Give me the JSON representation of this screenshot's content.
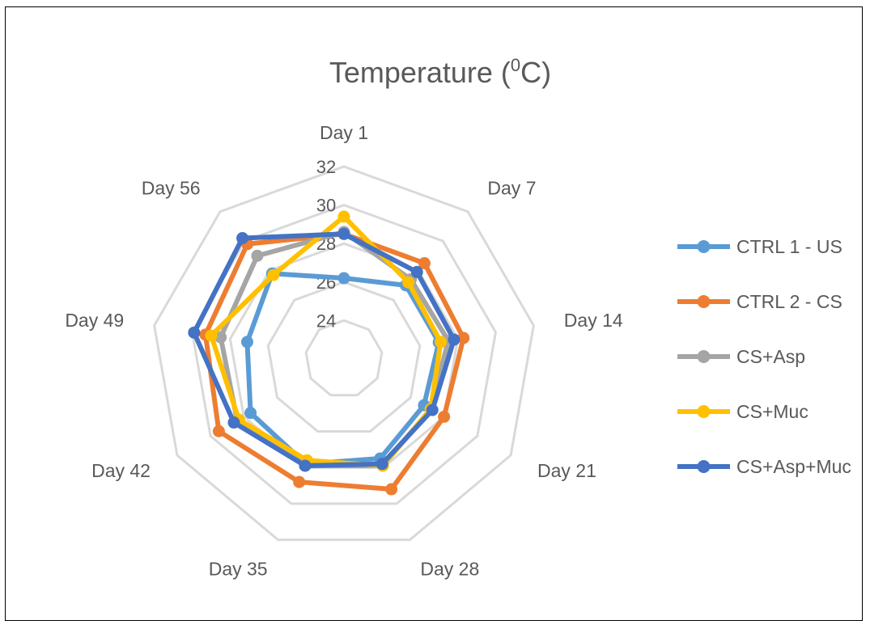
{
  "chart_data": {
    "type": "radar",
    "title": "Temperature (",
    "title_sup": "0",
    "title_end": "C)",
    "categories": [
      "Day 1",
      "Day 7",
      "Day 14",
      "Day 21",
      "Day 28",
      "Day 35",
      "Day 42",
      "Day 49",
      "Day 56"
    ],
    "axis_ticks": [
      24,
      26,
      28,
      30,
      32
    ],
    "range": [
      22,
      32
    ],
    "grid": true,
    "legend_position": "right",
    "series": [
      {
        "name": "CTRL 1 - US",
        "color": "#5B9BD5",
        "values": [
          26.2,
          27.0,
          27.0,
          26.8,
          27.5,
          27.8,
          27.6,
          27.1,
          27.8
        ]
      },
      {
        "name": "CTRL 2 - CS",
        "color": "#ED7D31",
        "values": [
          28.5,
          28.5,
          28.3,
          28.0,
          29.2,
          28.8,
          29.5,
          29.3,
          29.8
        ]
      },
      {
        "name": "CS+Asp",
        "color": "#A5A5A5",
        "values": [
          28.6,
          27.4,
          27.5,
          27.2,
          27.9,
          27.9,
          28.4,
          28.5,
          29.0
        ]
      },
      {
        "name": "CS+Muc",
        "color": "#FFC000",
        "values": [
          29.4,
          27.2,
          27.1,
          27.2,
          27.9,
          27.6,
          28.3,
          29.0,
          27.7
        ]
      },
      {
        "name": "CS+Asp+Muc",
        "color": "#4472C4",
        "values": [
          28.5,
          27.9,
          27.8,
          27.3,
          27.8,
          27.9,
          28.6,
          29.9,
          30.2
        ]
      }
    ]
  }
}
